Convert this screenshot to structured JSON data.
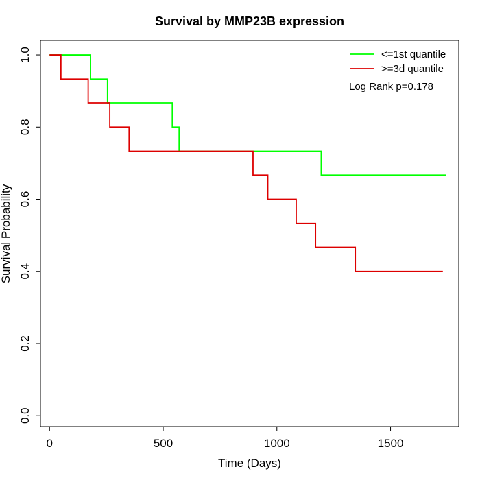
{
  "chart_data": {
    "type": "line",
    "title": "Survival by MMP23B expression",
    "xlabel": "Time (Days)",
    "ylabel": "Survival Probability",
    "xlim": [
      -40,
      1800
    ],
    "ylim": [
      -0.03,
      1.04
    ],
    "x_ticks": [
      0,
      500,
      1000,
      1500
    ],
    "y_ticks": [
      0.0,
      0.2,
      0.4,
      0.6,
      0.8,
      1.0
    ],
    "x_tick_labels": [
      "0",
      "500",
      "1000",
      "1500"
    ],
    "y_tick_labels": [
      "0.0",
      "0.2",
      "0.4",
      "0.6",
      "0.8",
      "1.0"
    ],
    "grid": false,
    "legend_position": "top-right",
    "annotation": "Log Rank p=0.178",
    "series": [
      {
        "name": "<=1st quantile",
        "color": "#00ff00",
        "step": true,
        "x": [
          0,
          180,
          255,
          540,
          570,
          1195,
          1745
        ],
        "y": [
          1.0,
          0.933,
          0.867,
          0.8,
          0.733,
          0.667,
          0.667
        ]
      },
      {
        "name": ">=3d quantile",
        "color": "#dd0000",
        "step": true,
        "x": [
          0,
          50,
          170,
          265,
          350,
          895,
          960,
          1085,
          1170,
          1345,
          1730
        ],
        "y": [
          1.0,
          0.933,
          0.867,
          0.8,
          0.733,
          0.667,
          0.6,
          0.533,
          0.467,
          0.4,
          0.4
        ]
      }
    ]
  }
}
